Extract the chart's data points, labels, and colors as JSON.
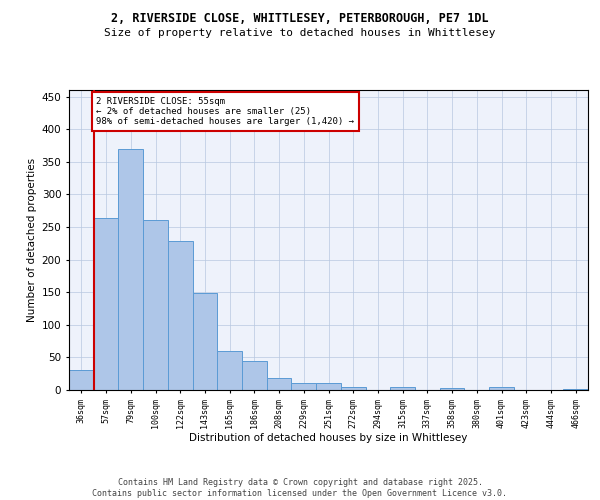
{
  "title_line1": "2, RIVERSIDE CLOSE, WHITTLESEY, PETERBOROUGH, PE7 1DL",
  "title_line2": "Size of property relative to detached houses in Whittlesey",
  "xlabel": "Distribution of detached houses by size in Whittlesey",
  "ylabel": "Number of detached properties",
  "bar_values": [
    30,
    263,
    369,
    261,
    229,
    148,
    60,
    45,
    19,
    11,
    10,
    5,
    0,
    5,
    0,
    3,
    0,
    4,
    0,
    0,
    2
  ],
  "bin_labels": [
    "36sqm",
    "57sqm",
    "79sqm",
    "100sqm",
    "122sqm",
    "143sqm",
    "165sqm",
    "186sqm",
    "208sqm",
    "229sqm",
    "251sqm",
    "272sqm",
    "294sqm",
    "315sqm",
    "337sqm",
    "358sqm",
    "380sqm",
    "401sqm",
    "423sqm",
    "444sqm",
    "466sqm"
  ],
  "bar_color": "#aec6e8",
  "bar_edge_color": "#5b9bd5",
  "bg_color": "#eef2fb",
  "annotation_text": "2 RIVERSIDE CLOSE: 55sqm\n← 2% of detached houses are smaller (25)\n98% of semi-detached houses are larger (1,420) →",
  "annotation_box_color": "#ffffff",
  "annotation_box_edge": "#cc0000",
  "vline_color": "#cc0000",
  "footer_text": "Contains HM Land Registry data © Crown copyright and database right 2025.\nContains public sector information licensed under the Open Government Licence v3.0.",
  "ylim": [
    0,
    460
  ],
  "yticks": [
    0,
    50,
    100,
    150,
    200,
    250,
    300,
    350,
    400,
    450
  ]
}
